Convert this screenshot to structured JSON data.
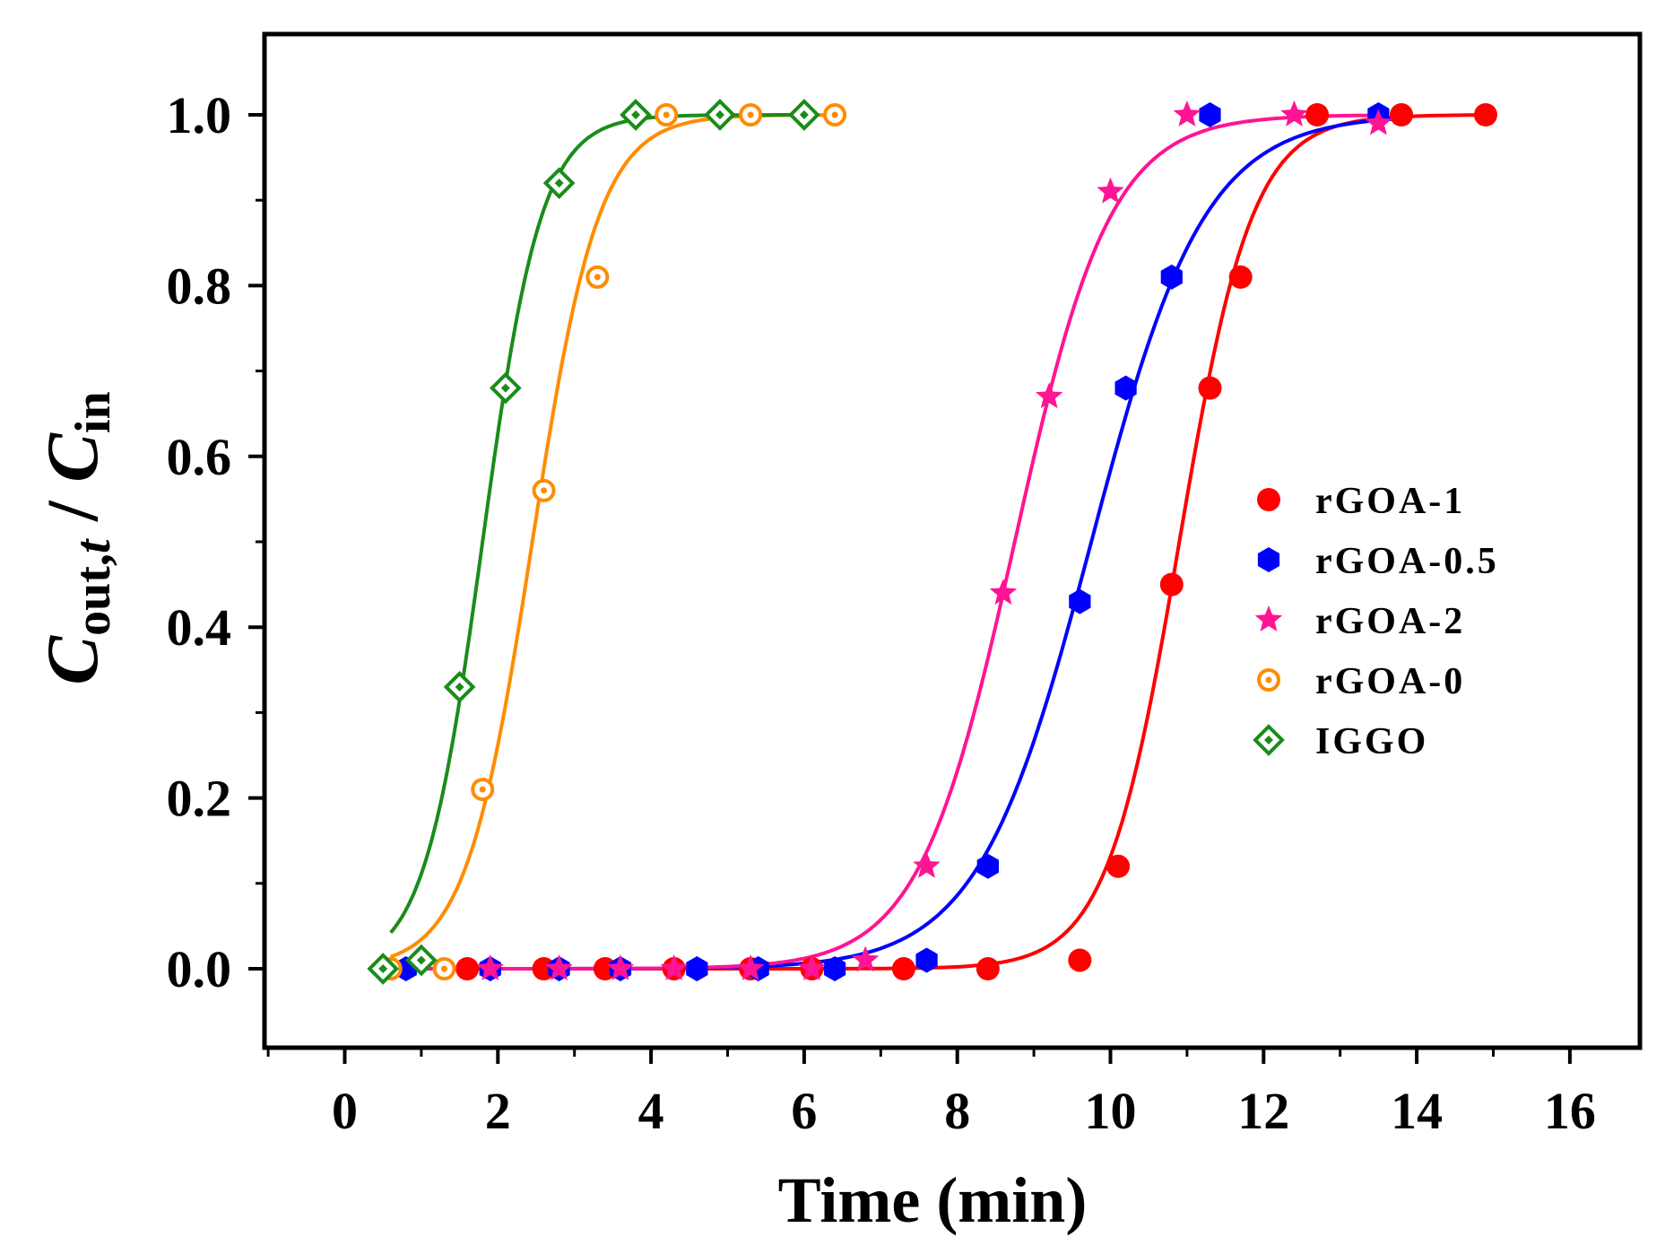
{
  "chart_data": {
    "type": "scatter",
    "title": "",
    "xlabel": "Time (min)",
    "ylabel": {
      "main": "C",
      "sub1": "out,",
      "sub_italic": "t",
      "separator": " / ",
      "main2": "C",
      "sub2": "in"
    },
    "xlim": [
      -1,
      17.5
    ],
    "ylim": [
      -0.1,
      1.09
    ],
    "xticks": [
      0,
      2,
      4,
      6,
      8,
      10,
      12,
      14,
      16
    ],
    "xtick_labels": [
      "0",
      "2",
      "4",
      "6",
      "8",
      "10",
      "12",
      "14",
      "16"
    ],
    "yticks": [
      0.0,
      0.2,
      0.4,
      0.6,
      0.8,
      1.0
    ],
    "ytick_labels": [
      "0.0",
      "0.2",
      "0.4",
      "0.6",
      "0.8",
      "1.0"
    ],
    "legend_position": "center-right",
    "series": [
      {
        "name": "rGOA-1",
        "color": "#ff0000",
        "marker": "filled-circle",
        "x": [
          1.6,
          2.6,
          3.4,
          4.3,
          5.3,
          6.1,
          7.3,
          8.4,
          9.6,
          10.1,
          10.8,
          11.3,
          11.7,
          12.7,
          13.8,
          14.9
        ],
        "y": [
          0.0,
          0.0,
          0.0,
          0.0,
          0.0,
          0.0,
          0.0,
          0.0,
          0.01,
          0.12,
          0.45,
          0.68,
          0.81,
          1.0,
          1.0,
          1.0
        ],
        "fit": {
          "t50": 10.9,
          "k": 2.1,
          "from": 0.6,
          "to": 15.0
        }
      },
      {
        "name": "rGOA-0.5",
        "color": "#0000ff",
        "marker": "filled-hexagon",
        "x": [
          0.8,
          1.9,
          2.8,
          3.6,
          4.6,
          5.4,
          6.4,
          7.6,
          8.4,
          9.6,
          10.2,
          10.8,
          11.3,
          13.5
        ],
        "y": [
          0.0,
          0.0,
          0.0,
          0.0,
          0.0,
          0.0,
          0.0,
          0.01,
          0.12,
          0.43,
          0.68,
          0.81,
          1.0,
          1.0
        ],
        "fit": {
          "t50": 9.75,
          "k": 1.35,
          "from": 0.6,
          "to": 13.7
        }
      },
      {
        "name": "rGOA-2",
        "color": "#ff1493",
        "marker": "filled-star",
        "x": [
          1.9,
          2.8,
          3.6,
          4.3,
          5.3,
          6.1,
          6.8,
          7.6,
          8.6,
          9.2,
          10.0,
          11.0,
          12.4,
          13.5
        ],
        "y": [
          0.0,
          0.0,
          0.0,
          0.0,
          0.0,
          0.0,
          0.01,
          0.12,
          0.44,
          0.67,
          0.91,
          1.0,
          1.0,
          0.99
        ],
        "fit": {
          "t50": 8.75,
          "k": 1.6,
          "from": 0.6,
          "to": 13.6
        }
      },
      {
        "name": "rGOA-0",
        "color": "#ff8c00",
        "marker": "open-circle",
        "x": [
          0.6,
          1.3,
          1.8,
          2.6,
          3.3,
          4.2,
          5.3,
          6.4
        ],
        "y": [
          0.0,
          0.0,
          0.21,
          0.56,
          0.81,
          1.0,
          1.0,
          1.0
        ],
        "fit": {
          "t50": 2.45,
          "k": 2.3,
          "from": 0.6,
          "to": 6.3
        }
      },
      {
        "name": "IGGO",
        "color": "#1a8c1a",
        "marker": "open-diamond",
        "x": [
          0.5,
          1.0,
          1.5,
          2.1,
          2.8,
          3.8,
          4.9,
          6.0
        ],
        "y": [
          0.0,
          0.01,
          0.33,
          0.68,
          0.92,
          1.0,
          1.0,
          1.0
        ],
        "fit": {
          "t50": 1.8,
          "k": 2.6,
          "from": 0.6,
          "to": 6.1
        }
      }
    ]
  }
}
